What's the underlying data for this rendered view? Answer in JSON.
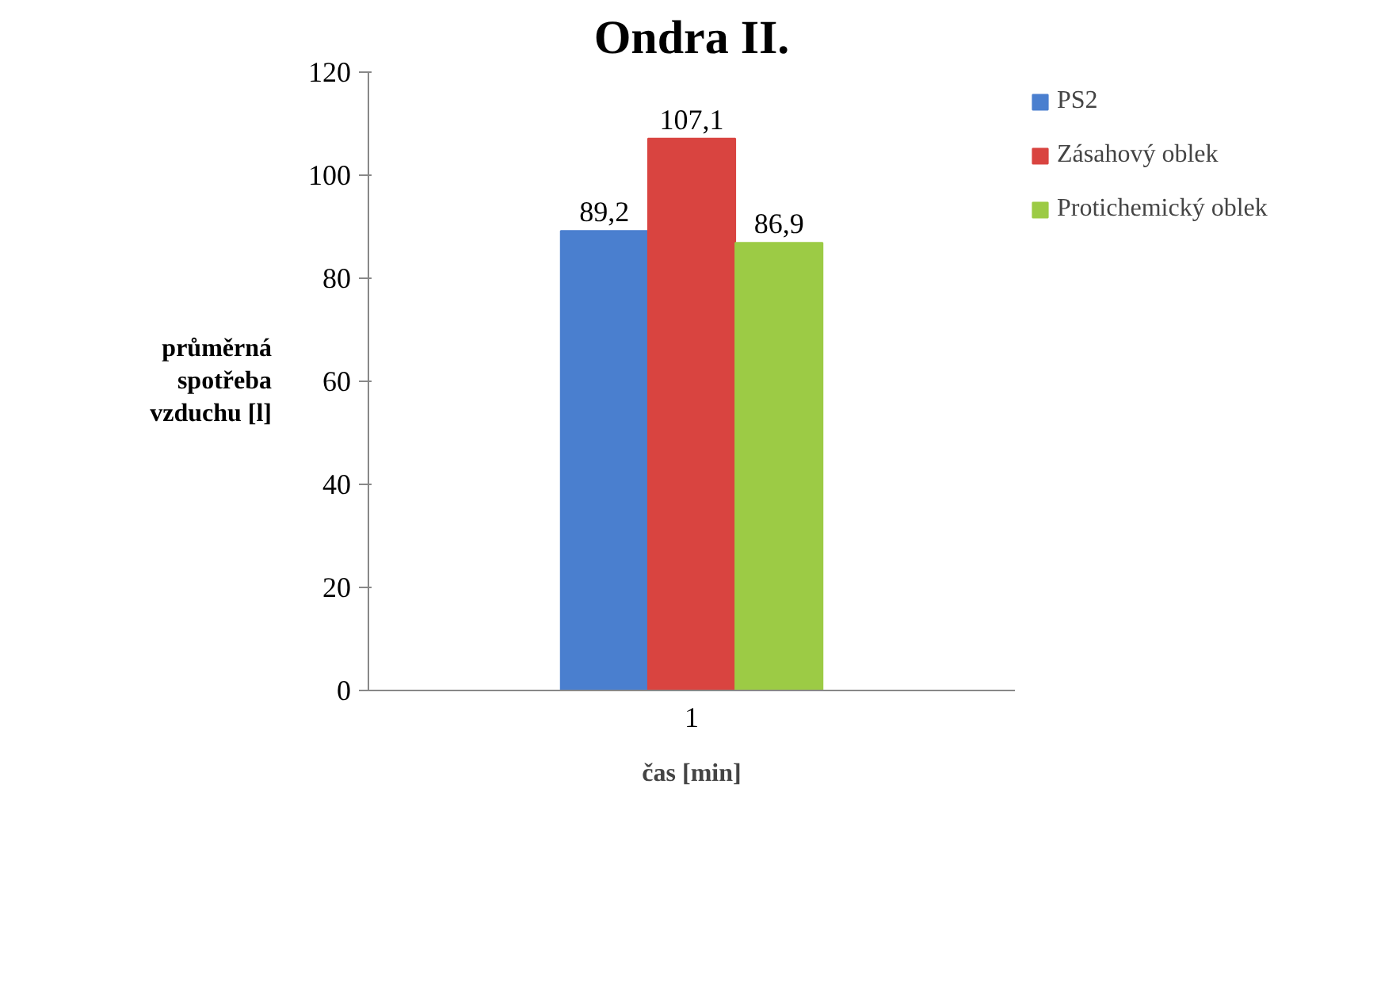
{
  "chart_data": {
    "type": "bar",
    "title": "Ondra II.",
    "xlabel": "čas [min]",
    "ylabel": "průměrná spotřeba vzduchu [l]",
    "categories": [
      "1"
    ],
    "series": [
      {
        "name": "PS2",
        "color": "#4a7fcf",
        "values": [
          89.2
        ],
        "value_labels": [
          "89,2"
        ]
      },
      {
        "name": "Zásahový oblek",
        "color": "#d94440",
        "values": [
          107.1
        ],
        "value_labels": [
          "107,1"
        ]
      },
      {
        "name": "Protichemický oblek",
        "color": "#9ccb45",
        "values": [
          86.9
        ],
        "value_labels": [
          "86,9"
        ]
      }
    ],
    "ylim": [
      0,
      120
    ],
    "yticks": [
      0,
      20,
      40,
      60,
      80,
      100,
      120
    ],
    "grid": false,
    "legend": "right"
  }
}
